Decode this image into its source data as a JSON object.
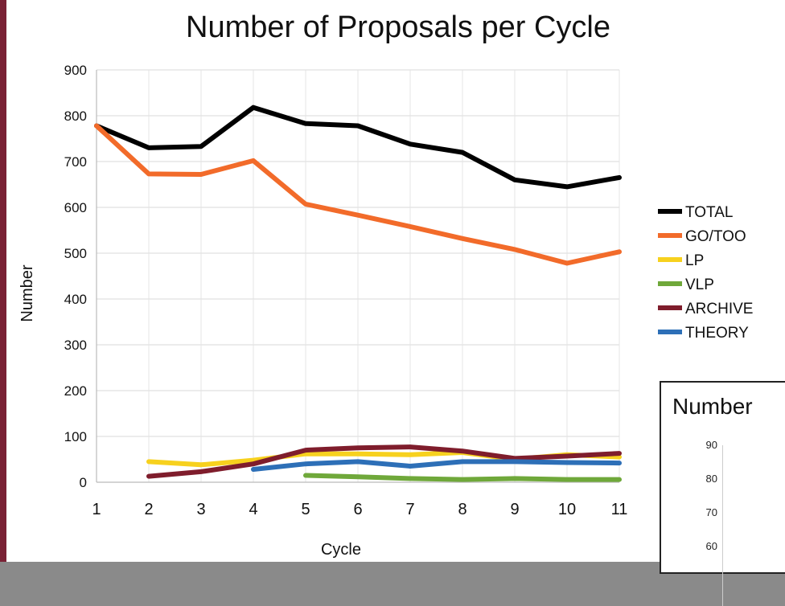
{
  "chart_data": [
    {
      "type": "line",
      "title": "Number of Proposals per Cycle",
      "xlabel": "Cycle",
      "ylabel": "Number",
      "ylim": [
        0,
        900
      ],
      "yticks": [
        0,
        100,
        200,
        300,
        400,
        500,
        600,
        700,
        800,
        900
      ],
      "x": [
        1,
        2,
        3,
        4,
        5,
        6,
        7,
        8,
        9,
        10,
        11
      ],
      "grid": true,
      "legend_position": "right",
      "series": [
        {
          "name": "TOTAL",
          "color": "#000000",
          "values": [
            778,
            730,
            733,
            818,
            783,
            778,
            738,
            720,
            660,
            645,
            665
          ]
        },
        {
          "name": "GO/TOO",
          "color": "#f26b2a",
          "values": [
            778,
            673,
            672,
            702,
            607,
            583,
            558,
            532,
            508,
            478,
            503
          ]
        },
        {
          "name": "LP",
          "color": "#f7d11e",
          "values": [
            null,
            45,
            38,
            48,
            62,
            62,
            60,
            65,
            50,
            60,
            55
          ]
        },
        {
          "name": "VLP",
          "color": "#6fa83a",
          "values": [
            null,
            null,
            null,
            null,
            15,
            12,
            8,
            6,
            8,
            6,
            6
          ]
        },
        {
          "name": "ARCHIVE",
          "color": "#7f1d2c",
          "values": [
            null,
            13,
            23,
            40,
            70,
            75,
            77,
            68,
            52,
            57,
            63
          ]
        },
        {
          "name": "THEORY",
          "color": "#2d6fb7",
          "values": [
            null,
            null,
            null,
            28,
            40,
            45,
            35,
            45,
            45,
            43,
            42
          ]
        }
      ]
    },
    {
      "type": "line",
      "title": "Number",
      "yticks": [
        90,
        80,
        70,
        60
      ]
    }
  ]
}
